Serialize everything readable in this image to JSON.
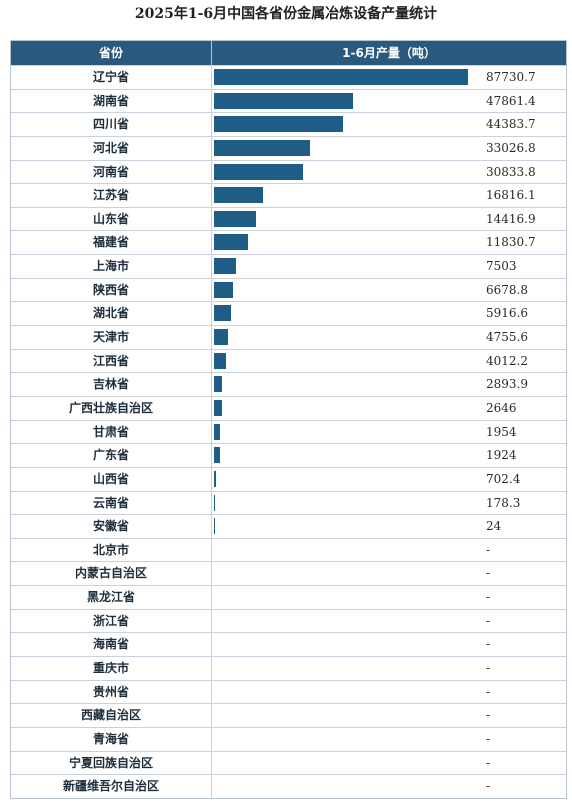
{
  "title": "2025年1-6月中国各省份金属冶炼设备产量统计",
  "header": {
    "province": "省份",
    "value": "1-6月产量（吨）"
  },
  "colors": {
    "header_bg": "#2a597d",
    "bar": "#1f5d86"
  },
  "chart_data": {
    "type": "bar",
    "title": "2025年1-6月中国各省份金属冶炼设备产量统计",
    "xlabel": "省份",
    "ylabel": "1-6月产量（吨）",
    "categories": [
      "辽宁省",
      "湖南省",
      "四川省",
      "河北省",
      "河南省",
      "江苏省",
      "山东省",
      "福建省",
      "上海市",
      "陕西省",
      "湖北省",
      "天津市",
      "江西省",
      "吉林省",
      "广西壮族自治区",
      "甘肃省",
      "广东省",
      "山西省",
      "云南省",
      "安徽省",
      "北京市",
      "内蒙古自治区",
      "黑龙江省",
      "浙江省",
      "海南省",
      "重庆市",
      "贵州省",
      "西藏自治区",
      "青海省",
      "宁夏回族自治区",
      "新疆维吾尔自治区"
    ],
    "values": [
      87730.7,
      47861.4,
      44383.7,
      33026.8,
      30833.8,
      16816.1,
      14416.9,
      11830.7,
      7503,
      6678.8,
      5916.6,
      4755.6,
      4012.2,
      2893.9,
      2646,
      1954,
      1924,
      702.4,
      178.3,
      24,
      null,
      null,
      null,
      null,
      null,
      null,
      null,
      null,
      null,
      null,
      null
    ],
    "labels": [
      "87730.7",
      "47861.4",
      "44383.7",
      "33026.8",
      "30833.8",
      "16816.1",
      "14416.9",
      "11830.7",
      "7503",
      "6678.8",
      "5916.6",
      "4755.6",
      "4012.2",
      "2893.9",
      "2646",
      "1954",
      "1924",
      "702.4",
      "178.3",
      "24",
      "-",
      "-",
      "-",
      "-",
      "-",
      "-",
      "-",
      "-",
      "-",
      "-",
      "-"
    ],
    "ylim": [
      0,
      87730.7
    ]
  }
}
